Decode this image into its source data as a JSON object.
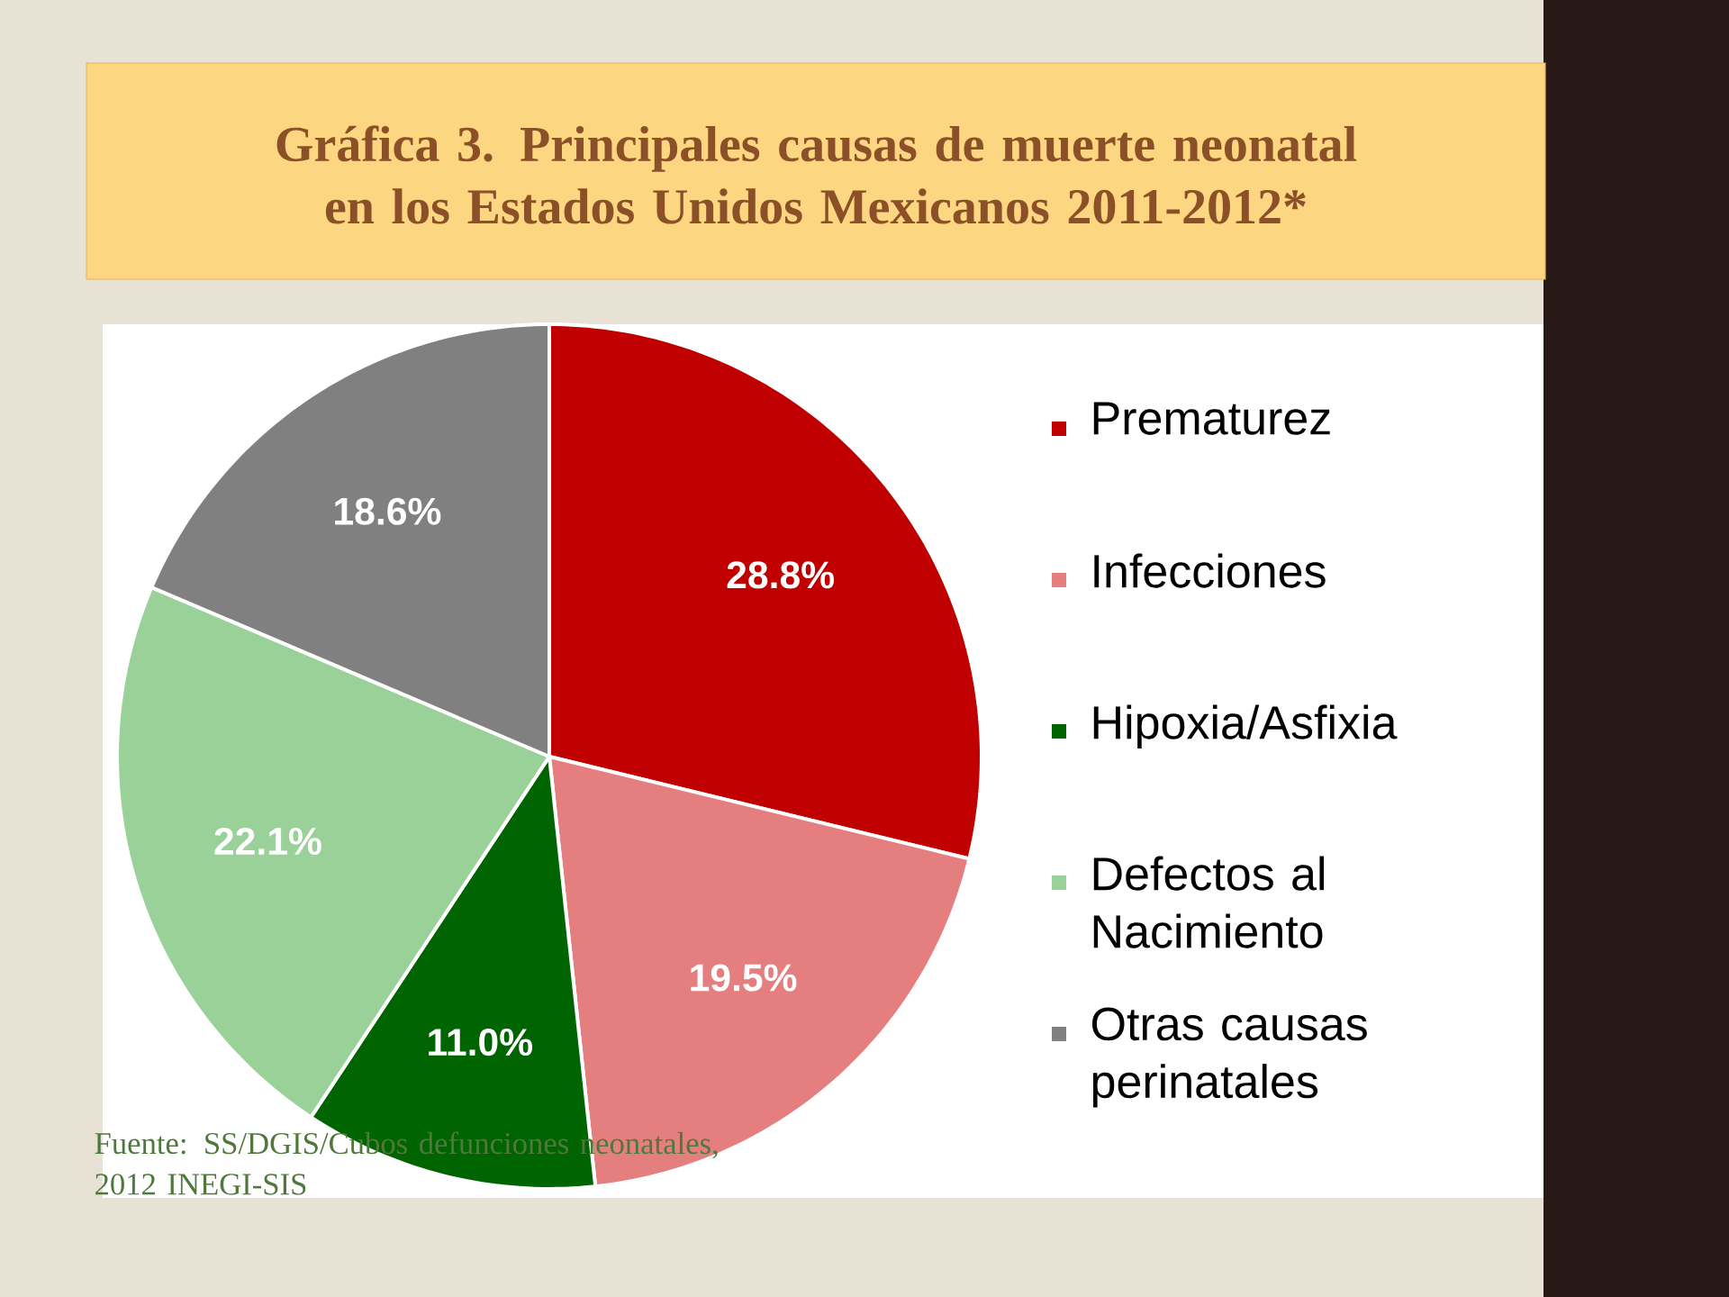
{
  "chart_data": {
    "type": "pie",
    "title": "Gráfica 3. Principales causas de muerte neonatal en los Estados Unidos Mexicanos 2011-2012*",
    "categories": [
      "Prematurez",
      "Infecciones",
      "Hipoxia/Asfixia",
      "Defectos al Nacimiento",
      "Otras causas perinatales"
    ],
    "values": [
      28.8,
      19.5,
      11.0,
      22.1,
      18.6
    ],
    "value_labels": [
      "28.8%",
      "19.5%",
      "11.0%",
      "22.1%",
      "18.6%"
    ],
    "colors": [
      "#c00000",
      "#e57f7f",
      "#006400",
      "#99d199",
      "#808080"
    ],
    "legend": "right",
    "annotations": [
      "Fuente: SS/DGIS/Cubos defunciones neonatales, 2012 INEGI-SIS"
    ]
  }
}
